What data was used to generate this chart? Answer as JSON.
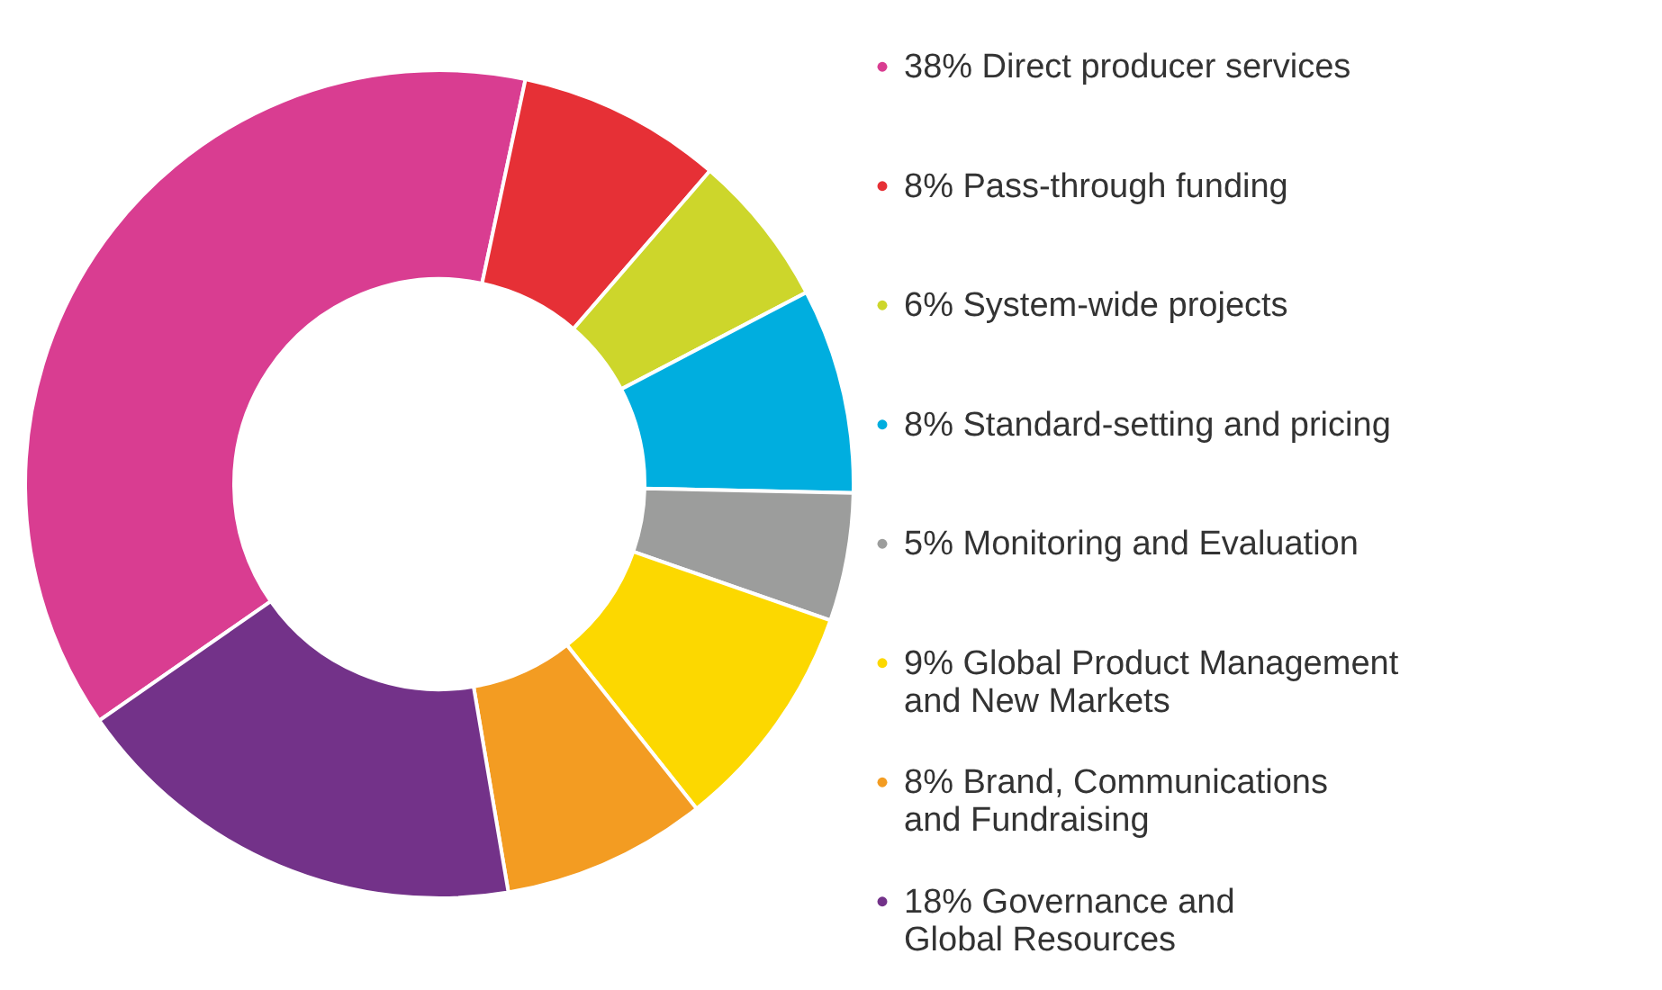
{
  "chart_data": {
    "type": "donut",
    "categories": [
      "Direct producer services",
      "Pass-through funding",
      "System-wide projects",
      "Standard-setting and pricing",
      "Monitoring and Evaluation",
      "Global Product Management\nand New Markets",
      "Brand, Communications\nand Fundraising",
      "Governance and\nGlobal Resources"
    ],
    "values": [
      38,
      8,
      6,
      8,
      5,
      9,
      8,
      18
    ],
    "value_labels": [
      "38%",
      "8%",
      "6%",
      "8%",
      "5%",
      "9%",
      "8%",
      "18%"
    ],
    "legend": "right",
    "colors": [
      "#d93d91",
      "#e63036",
      "#cdd62b",
      "#00aedf",
      "#9c9d9c",
      "#fcd800",
      "#f39c22",
      "#733289"
    ]
  }
}
